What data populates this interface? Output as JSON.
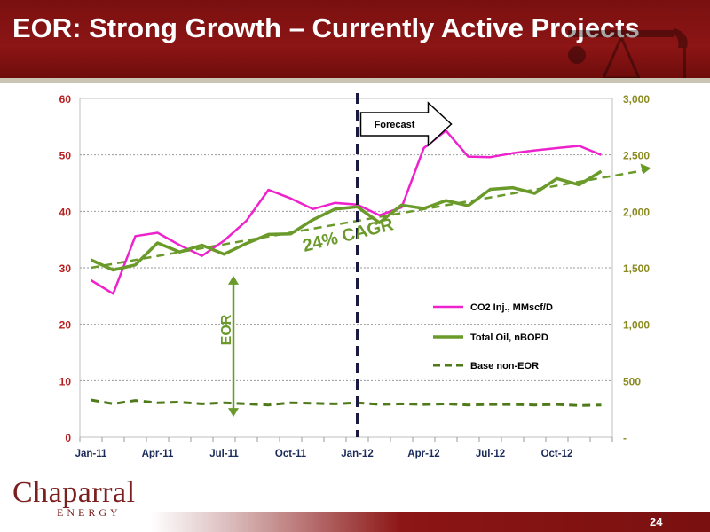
{
  "slide": {
    "title": "EOR:  Strong Growth – Currently Active Projects",
    "page_number": "24",
    "logo_text": "Chaparral",
    "logo_subtext": "ENERGY"
  },
  "colors": {
    "header": "#8c1515",
    "co2_series": "#ee22cc",
    "oil_series": "#6a9a2a",
    "base_series": "#4e7a1a",
    "annotation_green": "#6a9a2a",
    "right_axis_text": "#8a8a20"
  },
  "chart_data": {
    "type": "line",
    "x": [
      "Jan-11",
      "Feb-11",
      "Mar-11",
      "Apr-11",
      "May-11",
      "Jun-11",
      "Jul-11",
      "Aug-11",
      "Sep-11",
      "Oct-11",
      "Nov-11",
      "Dec-11",
      "Jan-12",
      "Feb-12",
      "Mar-12",
      "Apr-12",
      "May-12",
      "Jun-12",
      "Jul-12",
      "Aug-12",
      "Sep-12",
      "Oct-12",
      "Nov-12",
      "Dec-12"
    ],
    "xticks": [
      "Jan-11",
      "Apr-11",
      "Jul-11",
      "Oct-11",
      "Jan-12",
      "Apr-12",
      "Jul-12",
      "Oct-12"
    ],
    "ylim_left": [
      0,
      60
    ],
    "yticks_left": [
      "0",
      "10",
      "20",
      "30",
      "40",
      "50",
      "60"
    ],
    "ylim_right": [
      0,
      3000
    ],
    "yticks_right": [
      "-",
      "500",
      "1,000",
      "1,500",
      "2,000",
      "2,500",
      "3,000"
    ],
    "grid": true,
    "legend_position": "right",
    "series": [
      {
        "name": "CO2 Inj., MMscf/D",
        "axis": "left",
        "style": "solid",
        "values": [
          27.8,
          25.4,
          35.6,
          36.2,
          34.0,
          32.1,
          34.8,
          38.3,
          43.8,
          42.3,
          40.4,
          41.5,
          41.2,
          39.3,
          40.7,
          51.2,
          54.3,
          49.7,
          49.6,
          50.3,
          50.8,
          51.2,
          51.6,
          50.0
        ]
      },
      {
        "name": "Total Oil, nBOPD",
        "axis": "left",
        "style": "solid",
        "values": [
          31.4,
          29.6,
          30.5,
          34.4,
          32.8,
          34.0,
          32.4,
          34.3,
          35.9,
          36.0,
          38.5,
          40.4,
          40.8,
          38.0,
          41.1,
          40.5,
          41.9,
          41.0,
          43.9,
          44.2,
          43.2,
          45.8,
          44.7,
          47.1
        ]
      },
      {
        "name": "Base non-EOR",
        "axis": "left",
        "style": "dashed",
        "values": [
          6.6,
          5.9,
          6.5,
          6.1,
          6.2,
          5.9,
          6.1,
          5.9,
          5.7,
          6.1,
          6.0,
          5.9,
          6.1,
          5.8,
          5.9,
          5.8,
          5.9,
          5.7,
          5.8,
          5.8,
          5.7,
          5.8,
          5.6,
          5.7
        ]
      }
    ],
    "trend_line": {
      "from": [
        "Jan-11",
        30.0
      ],
      "to": [
        "Feb-13",
        47.2
      ]
    },
    "forecast_divider_x": "Jan-12",
    "annotations": {
      "forecast": "Forecast",
      "cagr": "24% CAGR",
      "eor": "EOR"
    }
  }
}
